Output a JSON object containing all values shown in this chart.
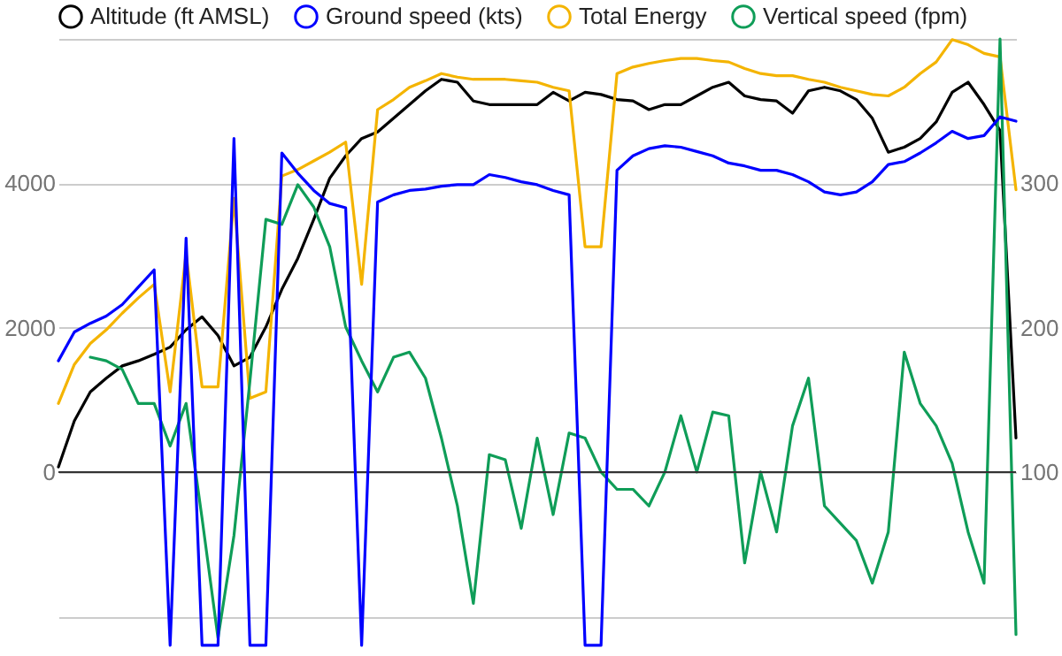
{
  "chart_data": {
    "type": "line",
    "categories": [
      null,
      null,
      null,
      null,
      null,
      null,
      null,
      null,
      null,
      null,
      null,
      null,
      null,
      null,
      null,
      null,
      null,
      null,
      null,
      null,
      null,
      null,
      null,
      null,
      null,
      null,
      null,
      null,
      null,
      null,
      null,
      null,
      null,
      null,
      null,
      null,
      null,
      null,
      null,
      null,
      null,
      null,
      null,
      null,
      null,
      null,
      null,
      null,
      null,
      null,
      null,
      null,
      null,
      null,
      null,
      null,
      null,
      null,
      null,
      null,
      null
    ],
    "series": [
      {
        "name": "Altitude (ft AMSL)",
        "color": "#000000",
        "values": [
          70,
          710,
          1110,
          1300,
          1470,
          1540,
          1630,
          1730,
          1970,
          2150,
          1890,
          1470,
          1590,
          2010,
          2530,
          2960,
          3500,
          4070,
          4380,
          4620,
          4710,
          4900,
          5090,
          5280,
          5440,
          5400,
          5140,
          5090,
          5090,
          5090,
          5090,
          5260,
          5140,
          5260,
          5230,
          5160,
          5140,
          5020,
          5090,
          5090,
          5210,
          5330,
          5400,
          5210,
          5160,
          5140,
          4970,
          5280,
          5330,
          5280,
          5160,
          4900,
          4430,
          4500,
          4620,
          4850,
          5260,
          5400,
          5090,
          4730,
          470
        ]
      },
      {
        "name": "Ground speed (kts)",
        "color": "#0000ff",
        "axis": "y2",
        "values": [
          177,
          197,
          203,
          208,
          216,
          228,
          240,
          -20,
          262,
          -20,
          -20,
          331,
          -20,
          -20,
          321,
          307,
          295,
          286,
          283,
          -20,
          287,
          292,
          295,
          296,
          298,
          299,
          299,
          306,
          304,
          301,
          299,
          295,
          292,
          -20,
          -20,
          309,
          319,
          324,
          326,
          325,
          322,
          319,
          314,
          312,
          309,
          309,
          306,
          301,
          294,
          292,
          294,
          301,
          313,
          315,
          321,
          328,
          336,
          331,
          333,
          346,
          343
        ]
      },
      {
        "name": "Total Energy",
        "color": "#f4b400",
        "values": [
          950,
          1490,
          1780,
          1970,
          2200,
          2410,
          2600,
          1110,
          3030,
          1180,
          1180,
          3790,
          1020,
          1110,
          4100,
          4190,
          4310,
          4430,
          4570,
          2600,
          5020,
          5160,
          5330,
          5420,
          5520,
          5470,
          5440,
          5440,
          5440,
          5420,
          5400,
          5330,
          5280,
          3120,
          3120,
          5520,
          5610,
          5660,
          5700,
          5730,
          5730,
          5700,
          5680,
          5590,
          5520,
          5490,
          5490,
          5440,
          5400,
          5330,
          5280,
          5230,
          5210,
          5330,
          5520,
          5680,
          5990,
          5920,
          5800,
          5750,
          3910
        ]
      },
      {
        "name": "Vertical speed (fpm)",
        "color": "#0f9d58",
        "values": [
          null,
          null,
          1590,
          1540,
          1420,
          950,
          950,
          360,
          950,
          -640,
          -2300,
          -880,
          1260,
          3500,
          3430,
          3980,
          3670,
          3120,
          2010,
          1540,
          1110,
          1590,
          1660,
          1300,
          470,
          -470,
          -1820,
          240,
          170,
          -780,
          470,
          -590,
          540,
          470,
          0,
          -240,
          -240,
          -470,
          0,
          780,
          0,
          830,
          780,
          -1260,
          0,
          -830,
          640,
          1300,
          -470,
          -710,
          -950,
          -1540,
          -830,
          1660,
          950,
          640,
          120,
          -830,
          -1540,
          6000,
          -2250
        ]
      }
    ],
    "ylim": [
      -2500,
      6000
    ],
    "yticks": [
      {
        "value": -2000,
        "label": null
      },
      0,
      2000,
      4000,
      {
        "value": 6000,
        "label": null
      }
    ],
    "y2lim": [
      -25,
      400
    ],
    "y2ticks": [
      100,
      200,
      300
    ],
    "ref_lines": [
      {
        "axis": "y",
        "value": 0,
        "color": "#333333"
      }
    ],
    "grid": "y",
    "legend": "top"
  }
}
